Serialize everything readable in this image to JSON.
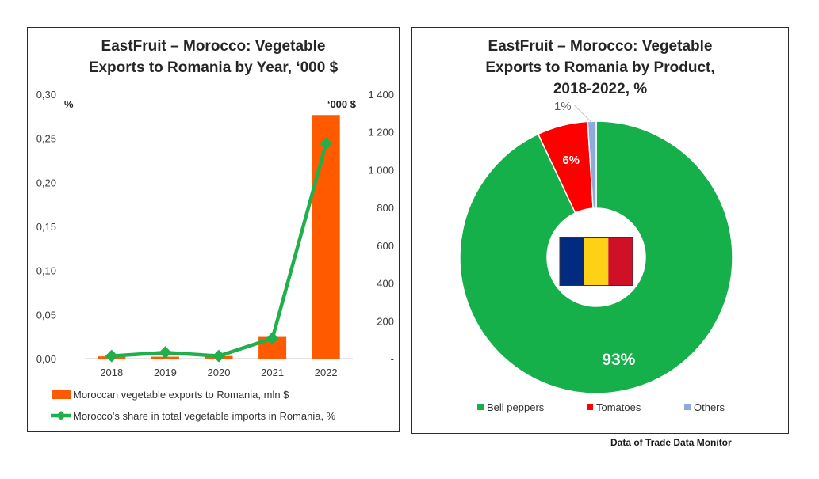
{
  "source_note": "Data of Trade Data Monitor",
  "colors": {
    "bar": "#FF5A00",
    "line": "#20B04B",
    "bell_peppers": "#16B04A",
    "tomatoes": "#FF0000",
    "others": "#8EA9DB",
    "flag_blue": "#002B7F",
    "flag_yellow": "#FCD116",
    "flag_red": "#CE1126"
  },
  "chart_data": [
    {
      "type": "bar",
      "title_line1": "EastFruit – Morocco: Vegetable",
      "title_line2": "Exports to Romania by Year, ‘000 $",
      "left_axis_unit": "%",
      "right_axis_unit": "‘000 $",
      "categories": [
        "2018",
        "2019",
        "2020",
        "2021",
        "2022"
      ],
      "left_axis": {
        "ylim": [
          0,
          0.3
        ],
        "ticks": [
          "0,00",
          "0,05",
          "0,10",
          "0,15",
          "0,20",
          "0,25",
          "0,30"
        ]
      },
      "right_axis": {
        "ylim": [
          0,
          1400
        ],
        "ticks": [
          "-",
          "200",
          "400",
          "600",
          "800",
          "1 000",
          "1 200",
          "1 400"
        ]
      },
      "series": [
        {
          "name": "Moroccan vegetable exports to Romania, mln $",
          "kind": "bar",
          "axis": "right",
          "values": [
            12,
            10,
            14,
            115,
            1290
          ]
        },
        {
          "name": "Morocco's share in total vegetable imports in Romania, %",
          "kind": "line",
          "axis": "left",
          "values": [
            0.003,
            0.007,
            0.003,
            0.023,
            0.244
          ]
        }
      ]
    },
    {
      "type": "pie",
      "title_line1": "EastFruit – Morocco: Vegetable",
      "title_line2": "Exports to Romania by Product,",
      "title_line3": "2018-2022, %",
      "slices": [
        {
          "name": "Bell peppers",
          "value": 93,
          "label": "93%"
        },
        {
          "name": "Tomatoes",
          "value": 6,
          "label": "6%"
        },
        {
          "name": "Others",
          "value": 1,
          "label": "1%"
        }
      ]
    }
  ]
}
